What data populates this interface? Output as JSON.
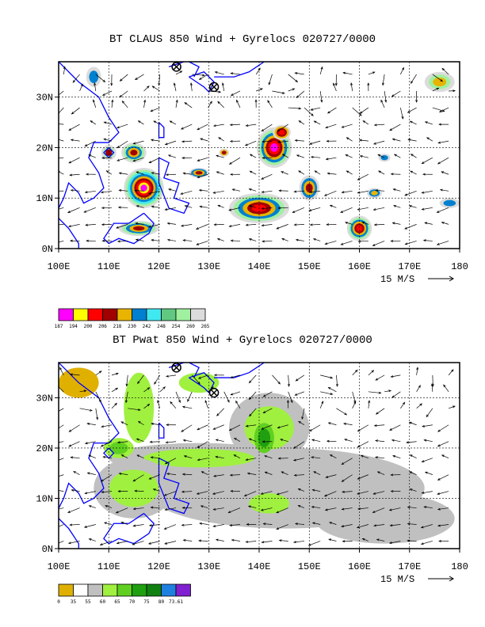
{
  "panels": [
    {
      "title": "BT CLAUS 850 Wind + Gyrelocs 020727/0000",
      "legend": {
        "colors": [
          "#ff00ff",
          "#ffff00",
          "#ff0000",
          "#a00000",
          "#e8b400",
          "#0080d0",
          "#40e8f0",
          "#60c880",
          "#a0f0a0",
          "#dcdcdc"
        ],
        "labels": [
          "187",
          "194",
          "200",
          "206",
          "218",
          "230",
          "242",
          "248",
          "254",
          "260",
          "265"
        ]
      },
      "xticks": [
        "100E",
        "110E",
        "120E",
        "130E",
        "140E",
        "150E",
        "160E",
        "170E",
        "180"
      ],
      "yticks": [
        "0N",
        "10N",
        "20N",
        "30N"
      ],
      "vector_ref": "15 M/S"
    },
    {
      "title": "BT Pwat 850 Wind + Gyrelocs 020727/0000",
      "legend": {
        "colors": [
          "#e0b000",
          "#ffffff",
          "#c0c0c0",
          "#a0f040",
          "#60d020",
          "#20a010",
          "#108010",
          "#2080e0",
          "#8020d0"
        ],
        "labels": [
          "0",
          "35",
          "55",
          "60",
          "65",
          "70",
          "75",
          "80",
          "73.61"
        ]
      },
      "xticks": [
        "100E",
        "110E",
        "120E",
        "130E",
        "140E",
        "150E",
        "160E",
        "170E",
        "180"
      ],
      "yticks": [
        "0N",
        "10N",
        "20N",
        "30N"
      ],
      "vector_ref": "15 M/S"
    }
  ],
  "chart_data": [
    {
      "type": "heatmap",
      "title": "BT CLAUS 850 Wind + Gyrelocs 020727/0000",
      "x_range": [
        100,
        180
      ],
      "y_range": [
        0,
        37
      ],
      "xlabel": "",
      "ylabel": "",
      "gyrelocs": [
        {
          "lon": 123.5,
          "lat": 36
        },
        {
          "lon": 131,
          "lat": 32
        }
      ],
      "legend_levels": [
        187,
        194,
        200,
        206,
        218,
        230,
        242,
        248,
        254,
        260,
        265
      ],
      "grid": true
    },
    {
      "type": "heatmap",
      "title": "BT Pwat 850 Wind + Gyrelocs 020727/0000",
      "x_range": [
        100,
        180
      ],
      "y_range": [
        0,
        37
      ],
      "xlabel": "",
      "ylabel": "",
      "gyrelocs": [
        {
          "lon": 123.5,
          "lat": 36
        },
        {
          "lon": 131,
          "lat": 31
        }
      ],
      "legend_levels": [
        "0",
        "35",
        "55",
        "60",
        "65",
        "70",
        "75",
        "80",
        "73.61"
      ],
      "grid": true
    }
  ]
}
